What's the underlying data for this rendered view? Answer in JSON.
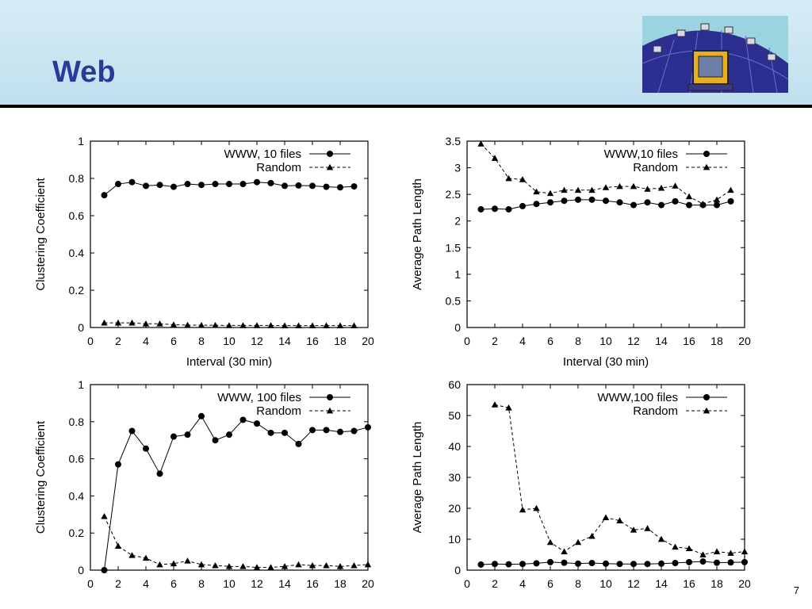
{
  "slide": {
    "title": "Web",
    "page_number": "7"
  },
  "colors": {
    "title": "#2b3a99",
    "header_bg": "#c9e6f2",
    "series_line": "#000000"
  },
  "logo": {
    "icon": "network-globe-icon"
  },
  "chart_data": [
    {
      "type": "line",
      "xlabel": "Interval (30 min)",
      "ylabel": "Clustering Coefficient",
      "xlim": [
        0,
        20
      ],
      "ylim": [
        0,
        1
      ],
      "xticks": [
        "0",
        "2",
        "4",
        "6",
        "8",
        "10",
        "12",
        "14",
        "16",
        "18",
        "20"
      ],
      "yticks": [
        "0",
        "0.2",
        "0.4",
        "0.6",
        "0.8",
        "1"
      ],
      "legend": "top-right",
      "grid": false,
      "x": [
        1,
        2,
        3,
        4,
        5,
        6,
        7,
        8,
        9,
        10,
        11,
        12,
        13,
        14,
        15,
        16,
        17,
        18,
        19
      ],
      "series": [
        {
          "name": "WWW, 10 files",
          "style": "solid",
          "marker": "circle",
          "values": [
            0.71,
            0.77,
            0.78,
            0.76,
            0.765,
            0.755,
            0.77,
            0.765,
            0.77,
            0.77,
            0.77,
            0.78,
            0.775,
            0.76,
            0.762,
            0.76,
            0.755,
            0.752,
            0.757
          ]
        },
        {
          "name": "Random",
          "style": "dashed",
          "marker": "triangle",
          "values": [
            0.025,
            0.025,
            0.025,
            0.02,
            0.02,
            0.015,
            0.013,
            0.012,
            0.012,
            0.011,
            0.011,
            0.011,
            0.011,
            0.01,
            0.01,
            0.01,
            0.01,
            0.01,
            0.01
          ]
        }
      ]
    },
    {
      "type": "line",
      "xlabel": "Interval (30 min)",
      "ylabel": "Average Path Length",
      "xlim": [
        0,
        20
      ],
      "ylim": [
        0,
        3.5
      ],
      "xticks": [
        "0",
        "2",
        "4",
        "6",
        "8",
        "10",
        "12",
        "14",
        "16",
        "18",
        "20"
      ],
      "yticks": [
        "0",
        "0.5",
        "1",
        "1.5",
        "2",
        "2.5",
        "3",
        "3.5"
      ],
      "legend": "top-right",
      "grid": false,
      "x": [
        1,
        2,
        3,
        4,
        5,
        6,
        7,
        8,
        9,
        10,
        11,
        12,
        13,
        14,
        15,
        16,
        17,
        18,
        19
      ],
      "series": [
        {
          "name": "WWW,10 files",
          "style": "solid",
          "marker": "circle",
          "values": [
            2.22,
            2.23,
            2.22,
            2.28,
            2.32,
            2.35,
            2.38,
            2.4,
            2.4,
            2.38,
            2.35,
            2.3,
            2.35,
            2.3,
            2.37,
            2.3,
            2.3,
            2.3,
            2.37
          ]
        },
        {
          "name": "Random",
          "style": "dashed",
          "marker": "triangle",
          "values": [
            3.45,
            3.18,
            2.8,
            2.78,
            2.55,
            2.52,
            2.58,
            2.58,
            2.58,
            2.63,
            2.65,
            2.65,
            2.6,
            2.62,
            2.66,
            2.46,
            2.32,
            2.4,
            2.58
          ]
        }
      ]
    },
    {
      "type": "line",
      "xlabel": "",
      "ylabel": "Clustering Coefficient",
      "xlim": [
        0,
        20
      ],
      "ylim": [
        0,
        1
      ],
      "xticks": [
        "0",
        "2",
        "4",
        "6",
        "8",
        "10",
        "12",
        "14",
        "16",
        "18",
        "20"
      ],
      "yticks": [
        "0",
        "0.2",
        "0.4",
        "0.6",
        "0.8",
        "1"
      ],
      "legend": "top-right",
      "grid": false,
      "x": [
        1,
        2,
        3,
        4,
        5,
        6,
        7,
        8,
        9,
        10,
        11,
        12,
        13,
        14,
        15,
        16,
        17,
        18,
        19,
        20
      ],
      "series": [
        {
          "name": "WWW, 100 files",
          "style": "solid",
          "marker": "circle",
          "values": [
            0.0,
            0.57,
            0.75,
            0.655,
            0.52,
            0.72,
            0.73,
            0.83,
            0.7,
            0.73,
            0.81,
            0.79,
            0.74,
            0.74,
            0.68,
            0.755,
            0.755,
            0.745,
            0.75,
            0.77
          ]
        },
        {
          "name": "Random",
          "style": "dashed",
          "marker": "triangle",
          "values": [
            0.29,
            0.13,
            0.08,
            0.065,
            0.03,
            0.035,
            0.05,
            0.03,
            0.025,
            0.02,
            0.02,
            0.015,
            0.015,
            0.02,
            0.03,
            0.025,
            0.025,
            0.02,
            0.025,
            0.03
          ]
        }
      ]
    },
    {
      "type": "line",
      "xlabel": "",
      "ylabel": "Average Path Length",
      "xlim": [
        0,
        20
      ],
      "ylim": [
        0,
        60
      ],
      "xticks": [
        "0",
        "2",
        "4",
        "6",
        "8",
        "10",
        "12",
        "14",
        "16",
        "18",
        "20"
      ],
      "yticks": [
        "0",
        "10",
        "20",
        "30",
        "40",
        "50",
        "60"
      ],
      "legend": "top-right",
      "grid": false,
      "x": [
        1,
        2,
        3,
        4,
        5,
        6,
        7,
        8,
        9,
        10,
        11,
        12,
        13,
        14,
        15,
        16,
        17,
        18,
        19,
        20
      ],
      "series": [
        {
          "name": "WWW,100 files",
          "style": "solid",
          "marker": "circle",
          "x": [
            1,
            2,
            3,
            4,
            5,
            6,
            7,
            8,
            9,
            10,
            11,
            12,
            13,
            14,
            15,
            16,
            17,
            18,
            19,
            20
          ],
          "values": [
            1.8,
            2.0,
            1.9,
            2.0,
            2.2,
            2.6,
            2.4,
            2.1,
            2.3,
            2.1,
            2.0,
            2.0,
            2.0,
            2.1,
            2.3,
            2.6,
            2.8,
            2.4,
            2.5,
            2.6
          ]
        },
        {
          "name": "Random",
          "style": "dashed",
          "marker": "triangle",
          "x": [
            2,
            3,
            4,
            5,
            6,
            7,
            8,
            9,
            10,
            11,
            12,
            13,
            14,
            15,
            16,
            17,
            18,
            19,
            20
          ],
          "values": [
            53.5,
            52.5,
            19.5,
            20,
            9,
            6,
            9,
            11,
            17,
            16,
            13,
            13.5,
            10,
            7.5,
            7,
            5,
            6,
            5.5,
            6
          ]
        }
      ]
    }
  ]
}
